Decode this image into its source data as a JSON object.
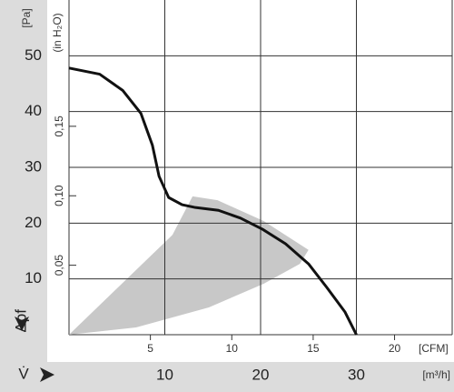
{
  "chart_data": {
    "type": "line",
    "y_unit": "[Pa]",
    "y2_unit": "(in H₂O)",
    "y_label": "Δpf",
    "x_label": "V̇",
    "x_unit": "[m³/h]",
    "x2_unit": "[CFM]",
    "x": [
      0,
      3.2,
      5.6,
      7.5,
      8.7,
      9.4,
      10.4,
      11.8,
      13.2,
      15.6,
      17.9,
      20.2,
      22.6,
      25,
      26.9,
      28.8,
      30
    ],
    "series": [
      {
        "name": "curve",
        "color": "#111111",
        "values": [
          47.8,
          46.7,
          43.8,
          39.7,
          34,
          28.4,
          24.6,
          23.3,
          22.8,
          22.3,
          20.9,
          18.9,
          16.3,
          12.7,
          8.5,
          4.1,
          0
        ]
      }
    ],
    "operating_range": {
      "color": "#c8c8c8",
      "x": [
        0,
        10.8,
        12.9,
        15.5,
        20.3,
        25,
        24.1,
        20.3,
        14.6,
        7
      ],
      "values": [
        0,
        17.9,
        24.8,
        24.1,
        20.4,
        15.2,
        12.7,
        9.1,
        4.9,
        1.3
      ]
    },
    "xlim": [
      0,
      40
    ],
    "xticks": [
      10,
      20,
      30
    ],
    "x2lim": [
      0,
      23.54
    ],
    "x2ticks": [
      5,
      10,
      15,
      20
    ],
    "ylim": [
      0,
      60
    ],
    "yticks": [
      10,
      20,
      30,
      40,
      50
    ],
    "y2lim": [
      0,
      0.2409
    ],
    "y2ticks": [
      {
        "value": 0.05,
        "label": "0,05"
      },
      {
        "value": 0.1,
        "label": "0,10"
      },
      {
        "value": 0.15,
        "label": "0,15"
      }
    ],
    "grid": true
  }
}
